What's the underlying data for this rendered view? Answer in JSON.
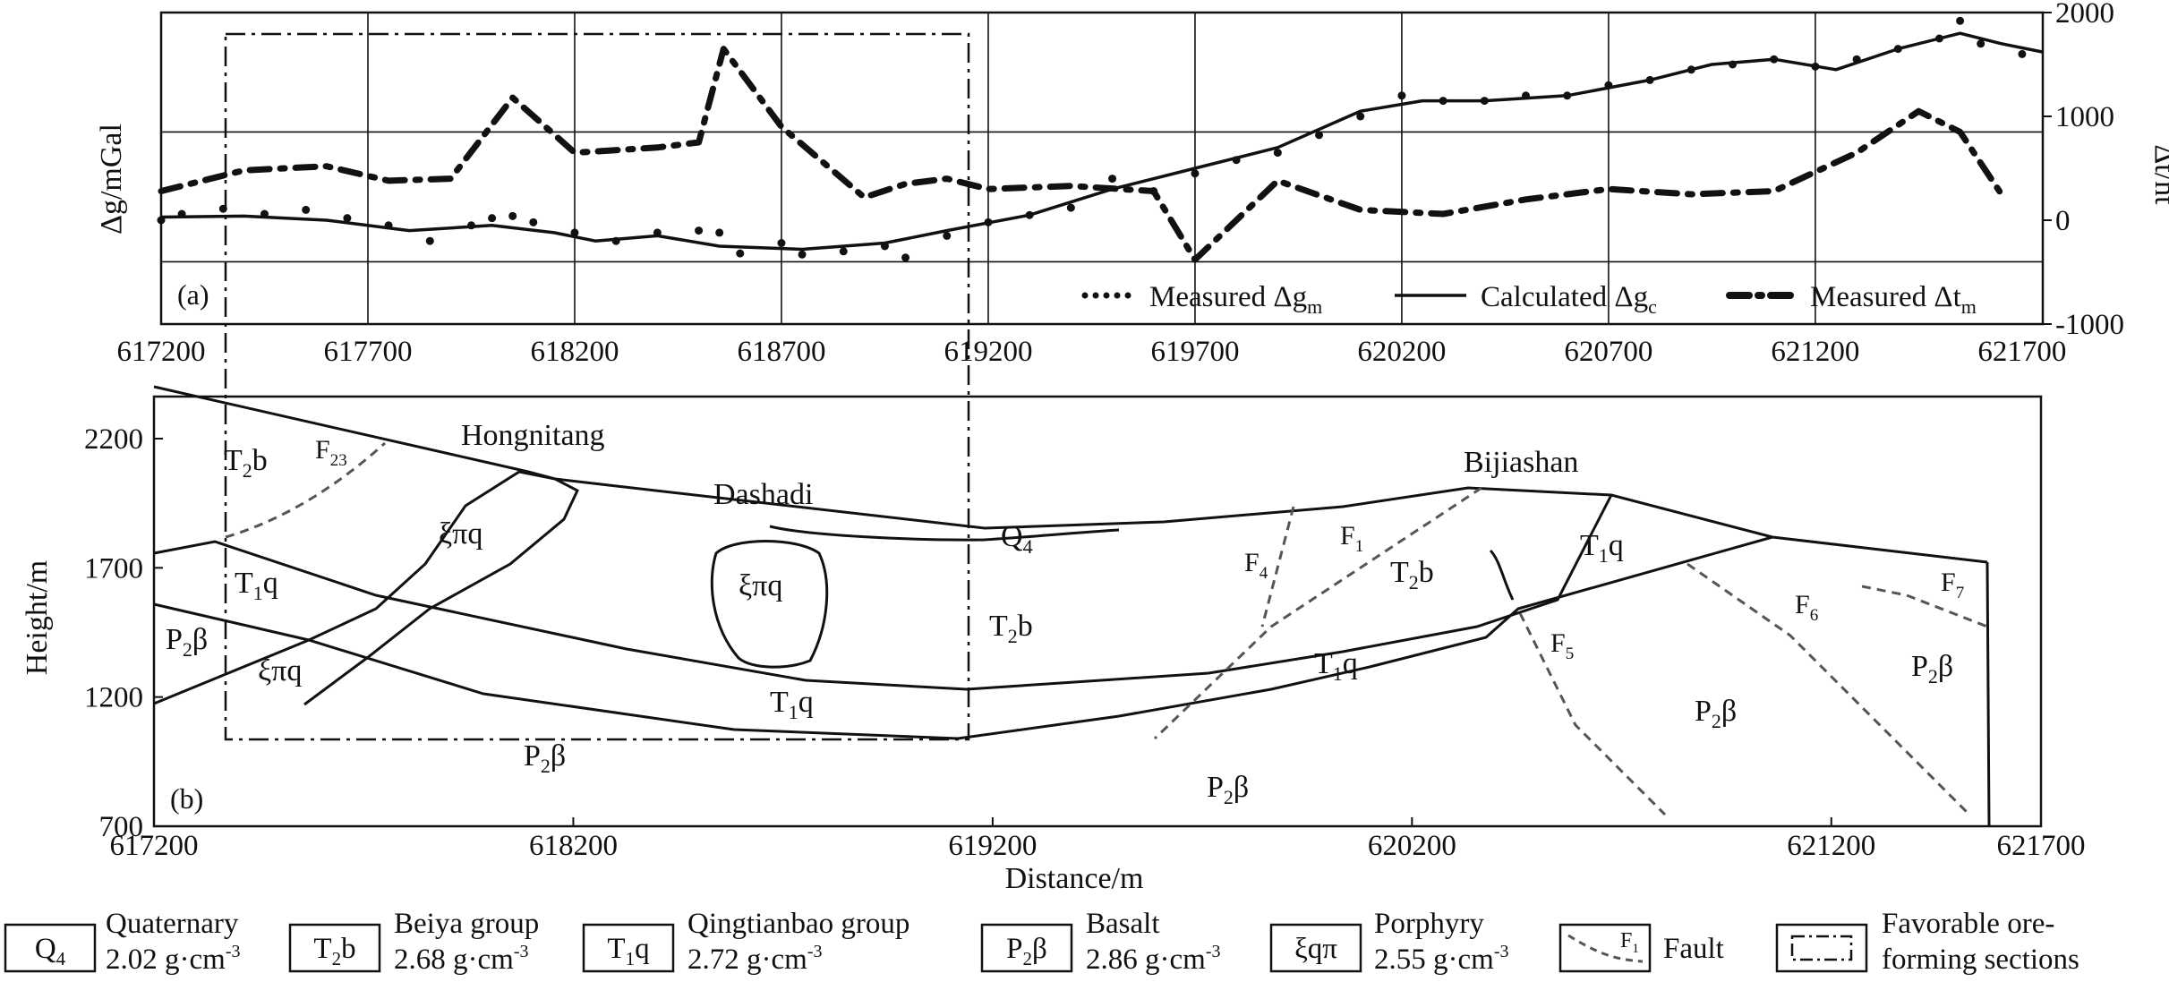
{
  "chart_data": [
    {
      "panel": "a",
      "type": "line",
      "panel_label": "(a)",
      "xlim": [
        617200,
        621750
      ],
      "x_ticks": [
        617200,
        617700,
        618200,
        618700,
        619200,
        619700,
        620200,
        620700,
        621200,
        621700
      ],
      "x_tick_labels": [
        "617200",
        "617700",
        "618200",
        "618700",
        "619200",
        "619700",
        "620200",
        "620700",
        "621200",
        "621700"
      ],
      "ylabel": "Δg/mGal",
      "y2label": "Δt/nt",
      "y2lim": [
        -1000,
        2000
      ],
      "y2_ticks": [
        -1000,
        0,
        1000,
        2000
      ],
      "y2_tick_labels": [
        "-1000",
        "0",
        "1000",
        "2000"
      ],
      "legend": [
        {
          "key": "gm",
          "label": "Measured Δg",
          "sub": "m",
          "style": "dotted"
        },
        {
          "key": "gc",
          "label": "Calculated Δg",
          "sub": "c",
          "style": "solid"
        },
        {
          "key": "tm",
          "label": "Measured Δt",
          "sub": "m",
          "style": "dash-dot"
        }
      ],
      "series": [
        {
          "name": "Measured Δgm",
          "style": "dotted",
          "scale": "relative",
          "values": [
            [
              617200,
              0.0
            ],
            [
              617250,
              0.06
            ],
            [
              617350,
              0.11
            ],
            [
              617450,
              0.06
            ],
            [
              617550,
              0.1
            ],
            [
              617650,
              0.02
            ],
            [
              617750,
              -0.05
            ],
            [
              617850,
              -0.2
            ],
            [
              617950,
              -0.05
            ],
            [
              618000,
              0.02
            ],
            [
              618050,
              0.04
            ],
            [
              618100,
              -0.02
            ],
            [
              618200,
              -0.12
            ],
            [
              618300,
              -0.2
            ],
            [
              618400,
              -0.12
            ],
            [
              618500,
              -0.1
            ],
            [
              618550,
              -0.12
            ],
            [
              618600,
              -0.32
            ],
            [
              618700,
              -0.22
            ],
            [
              618750,
              -0.33
            ],
            [
              618850,
              -0.3
            ],
            [
              618950,
              -0.25
            ],
            [
              619000,
              -0.36
            ],
            [
              619100,
              -0.15
            ],
            [
              619200,
              -0.02
            ],
            [
              619300,
              0.05
            ],
            [
              619400,
              0.12
            ],
            [
              619500,
              0.4
            ],
            [
              619600,
              0.28
            ],
            [
              619700,
              0.45
            ],
            [
              619800,
              0.58
            ],
            [
              619900,
              0.65
            ],
            [
              620000,
              0.82
            ],
            [
              620100,
              1.0
            ],
            [
              620200,
              1.2
            ],
            [
              620300,
              1.15
            ],
            [
              620400,
              1.15
            ],
            [
              620500,
              1.2
            ],
            [
              620600,
              1.2
            ],
            [
              620700,
              1.3
            ],
            [
              620800,
              1.35
            ],
            [
              620900,
              1.45
            ],
            [
              621000,
              1.5
            ],
            [
              621100,
              1.55
            ],
            [
              621200,
              1.48
            ],
            [
              621300,
              1.55
            ],
            [
              621400,
              1.65
            ],
            [
              621500,
              1.75
            ],
            [
              621550,
              1.92
            ],
            [
              621600,
              1.7
            ],
            [
              621700,
              1.6
            ]
          ]
        },
        {
          "name": "Calculated Δgc",
          "style": "solid",
          "scale": "relative",
          "values": [
            [
              617200,
              0.03
            ],
            [
              617400,
              0.04
            ],
            [
              617600,
              0.0
            ],
            [
              617800,
              -0.1
            ],
            [
              618000,
              -0.05
            ],
            [
              618150,
              -0.12
            ],
            [
              618250,
              -0.2
            ],
            [
              618400,
              -0.15
            ],
            [
              618550,
              -0.25
            ],
            [
              618750,
              -0.28
            ],
            [
              618950,
              -0.22
            ],
            [
              619100,
              -0.1
            ],
            [
              619300,
              0.05
            ],
            [
              619500,
              0.3
            ],
            [
              619700,
              0.5
            ],
            [
              619900,
              0.7
            ],
            [
              620100,
              1.05
            ],
            [
              620250,
              1.15
            ],
            [
              620400,
              1.15
            ],
            [
              620600,
              1.2
            ],
            [
              620800,
              1.35
            ],
            [
              620950,
              1.5
            ],
            [
              621100,
              1.55
            ],
            [
              621250,
              1.45
            ],
            [
              621400,
              1.65
            ],
            [
              621550,
              1.8
            ],
            [
              621650,
              1.7
            ],
            [
              621750,
              1.62
            ]
          ]
        },
        {
          "name": "Measured Δtm",
          "style": "dash-dot",
          "unit": "nt",
          "values": [
            [
              617200,
              280
            ],
            [
              617400,
              480
            ],
            [
              617600,
              520
            ],
            [
              617750,
              380
            ],
            [
              617900,
              400
            ],
            [
              618050,
              1180
            ],
            [
              618200,
              650
            ],
            [
              618400,
              700
            ],
            [
              618500,
              750
            ],
            [
              618560,
              1650
            ],
            [
              618700,
              900
            ],
            [
              618900,
              220
            ],
            [
              619000,
              350
            ],
            [
              619100,
              400
            ],
            [
              619200,
              300
            ],
            [
              619400,
              330
            ],
            [
              619600,
              280
            ],
            [
              619700,
              -380
            ],
            [
              619900,
              380
            ],
            [
              620100,
              100
            ],
            [
              620300,
              60
            ],
            [
              620500,
              200
            ],
            [
              620700,
              300
            ],
            [
              620900,
              250
            ],
            [
              621100,
              280
            ],
            [
              621300,
              650
            ],
            [
              621450,
              1050
            ],
            [
              621550,
              850
            ],
            [
              621650,
              250
            ]
          ]
        }
      ]
    },
    {
      "panel": "b",
      "type": "geological cross-section",
      "panel_label": "(b)",
      "xlim": [
        617200,
        621700
      ],
      "x_ticks": [
        617200,
        618200,
        619200,
        620200,
        621200,
        621700
      ],
      "x_tick_labels": [
        "617200",
        "618200",
        "619200",
        "620200",
        "621200",
        "621700"
      ],
      "xlabel": "Distance/m",
      "ylabel": "Height/m",
      "ylim": [
        700,
        2400
      ],
      "y_ticks": [
        700,
        1200,
        1700,
        2200
      ],
      "y_tick_labels": [
        "700",
        "1200",
        "1700",
        "2200"
      ],
      "places": [
        "Hongnitang",
        "Dashadi",
        "Bijiashan"
      ],
      "units": [
        {
          "base": "T",
          "sub": "2",
          "tail": "b"
        },
        {
          "base": "T",
          "sub": "1",
          "tail": "q"
        },
        {
          "base": "P",
          "sub": "2",
          "tail": "β"
        },
        {
          "base": "ξπq",
          "sub": "",
          "tail": ""
        },
        {
          "base": "Q",
          "sub": "4",
          "tail": ""
        }
      ],
      "faults": [
        "F23",
        "F4",
        "F1",
        "F5",
        "F6",
        "F7"
      ]
    }
  ],
  "legend_bottom": [
    {
      "code_base": "Q",
      "code_sub": "4",
      "code_tail": "",
      "name": "Quaternary",
      "density": "2.02 g·cm",
      "exp": "-3"
    },
    {
      "code_base": "T",
      "code_sub": "2",
      "code_tail": "b",
      "name": "Beiya group",
      "density": "2.68 g·cm",
      "exp": "-3"
    },
    {
      "code_base": "T",
      "code_sub": "1",
      "code_tail": "q",
      "name": "Qingtianbao group",
      "density": "2.72 g·cm",
      "exp": "-3"
    },
    {
      "code_base": "P",
      "code_sub": "2",
      "code_tail": "β",
      "name": "Basalt",
      "density": "2.86 g·cm",
      "exp": "-3"
    },
    {
      "code_base": "ξqπ",
      "code_sub": "",
      "code_tail": "",
      "name": "Porphyry",
      "density": "2.55 g·cm",
      "exp": "-3"
    },
    {
      "code_base": "F",
      "code_sub": "1",
      "code_tail": "",
      "name": "Fault",
      "density": "",
      "exp": ""
    },
    {
      "code_base": "",
      "code_sub": "",
      "code_tail": "",
      "name": "Favorable ore-",
      "name2": "forming sections",
      "density": "",
      "exp": ""
    }
  ]
}
